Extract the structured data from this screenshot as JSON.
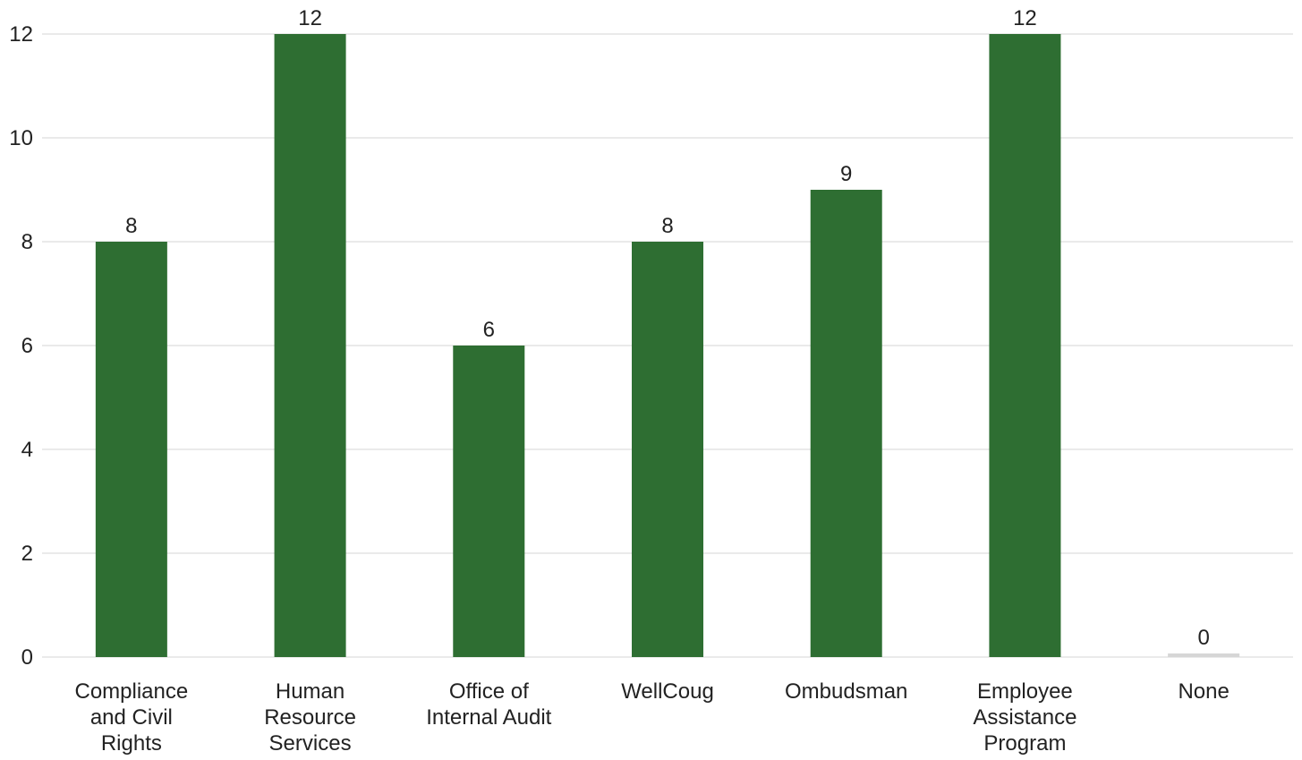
{
  "chart_data": {
    "type": "bar",
    "categories": [
      [
        "Compliance",
        "and Civil",
        "Rights"
      ],
      [
        "Human",
        "Resource",
        "Services"
      ],
      [
        "Office of",
        "Internal Audit"
      ],
      [
        "WellCoug"
      ],
      [
        "Ombudsman"
      ],
      [
        "Employee",
        "Assistance",
        "Program"
      ],
      [
        "None"
      ]
    ],
    "values": [
      8,
      12,
      6,
      8,
      9,
      12,
      0
    ],
    "data_labels": [
      "8",
      "12",
      "6",
      "8",
      "9",
      "12",
      "0"
    ],
    "yticks": [
      "0",
      "2",
      "4",
      "6",
      "8",
      "10",
      "12"
    ],
    "ylim": [
      0,
      12
    ],
    "title": "",
    "xlabel": "",
    "ylabel": "",
    "grid": true,
    "colors": {
      "bar": "#2e6e32",
      "zero_bar": "#d6d6d6",
      "grid": "#e3e3e3",
      "text": "#222222"
    }
  }
}
